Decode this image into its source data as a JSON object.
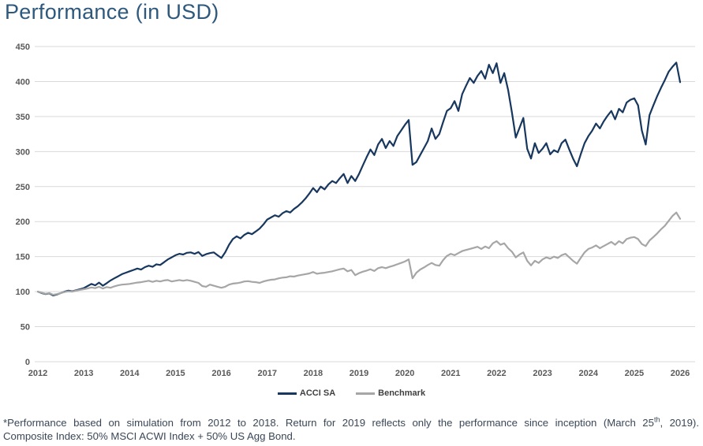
{
  "title": "Performance (in USD)",
  "footnote": {
    "part1": "*Performance based on simulation from 2012 to 2018. Return for 2019 reflects only the performance since inception (March 25",
    "sup": "th",
    "part2": ", 2019).",
    "line2": "Composite Index: 50% MSCI ACWI Index + 50% US Agg Bond."
  },
  "colors": {
    "title": "#2E587C",
    "grid": "#D9D9D9",
    "tick_label": "#595959",
    "footnote": "#3A4757",
    "acci_sa_line": "#17375E",
    "benchmark_line": "#A6A6A6"
  },
  "chart_data": {
    "type": "line",
    "title": "Performance (in USD)",
    "xlabel": "",
    "ylabel": "",
    "grid": true,
    "legend_position": "bottom",
    "ylim": [
      0,
      450
    ],
    "y_ticks": [
      0,
      50,
      100,
      150,
      200,
      250,
      300,
      350,
      400,
      450
    ],
    "x_ticks": [
      2012,
      2013,
      2014,
      2015,
      2016,
      2017,
      2018,
      2019,
      2020,
      2021,
      2022,
      2023,
      2024,
      2025,
      2026
    ],
    "x_start_year": 2012,
    "points_per_year": 12,
    "series": [
      {
        "name": "ACCI SA",
        "color": "#17375E",
        "values": [
          100,
          98,
          96.5,
          97.5,
          94.5,
          96,
          98,
          100,
          101.5,
          100.5,
          102,
          103.5,
          105,
          108,
          111,
          109,
          113,
          108.5,
          112,
          116,
          119,
          122,
          125,
          127,
          129,
          131,
          133,
          131.5,
          135,
          137,
          135.5,
          139,
          138,
          142,
          146,
          149,
          152,
          154,
          153,
          155.5,
          156,
          154,
          156.5,
          151,
          153.5,
          155,
          156,
          152,
          148,
          156,
          167,
          175,
          179,
          176,
          181,
          184,
          182,
          186,
          190,
          196,
          203,
          206,
          209,
          207,
          212,
          215,
          213,
          218,
          222,
          227,
          233,
          240,
          248,
          242,
          250,
          246,
          253,
          258,
          255,
          262,
          268,
          255,
          265,
          258,
          268,
          280,
          292,
          303,
          295,
          310,
          318,
          305,
          315,
          308,
          322,
          330,
          338,
          345,
          281,
          285,
          295,
          305,
          315,
          333,
          318,
          325,
          342,
          358,
          362,
          372,
          358,
          382,
          394,
          405,
          398,
          408,
          415,
          404,
          424,
          412,
          426,
          398,
          412,
          388,
          356,
          320,
          334,
          348,
          304,
          290,
          312,
          298,
          304,
          312,
          296,
          302,
          299,
          312,
          317,
          303,
          290,
          279,
          296,
          312,
          322,
          330,
          340,
          333,
          343,
          351,
          358,
          346,
          361,
          356,
          370,
          374,
          376,
          366,
          330,
          310,
          352,
          366,
          379,
          391,
          402,
          414,
          421,
          427,
          399
        ]
      },
      {
        "name": "Benchmark",
        "color": "#A6A6A6",
        "values": [
          100,
          98.5,
          97,
          98,
          95.5,
          96.5,
          98,
          99.5,
          100.5,
          100,
          101.5,
          102.5,
          103.5,
          104.5,
          106,
          105,
          107,
          104.5,
          106.5,
          105.5,
          107.5,
          109,
          110,
          110.5,
          111,
          112,
          113,
          113.5,
          114.5,
          115.5,
          114,
          115.5,
          114.5,
          116,
          116.5,
          114.5,
          115.5,
          116.5,
          115.5,
          116.5,
          115.5,
          114,
          112.5,
          108,
          107,
          110,
          108.5,
          107,
          105.5,
          107,
          110,
          111.5,
          112,
          113,
          114.5,
          115,
          114,
          113.5,
          112.5,
          114.5,
          116,
          117,
          117.5,
          119,
          120,
          120.5,
          122,
          121.5,
          123,
          124,
          125,
          126,
          128,
          125.5,
          126.5,
          127,
          128,
          129,
          130.5,
          132,
          133,
          129,
          131,
          123.5,
          126.5,
          128.5,
          130,
          132,
          129.5,
          133.5,
          135,
          133.5,
          135.5,
          137,
          139,
          141,
          143,
          146,
          119,
          127,
          131.5,
          134.5,
          138,
          141,
          138,
          137,
          145,
          151,
          154,
          152,
          155,
          158,
          159.5,
          161,
          162.5,
          164,
          161,
          164.5,
          162,
          169,
          172,
          167,
          169,
          162,
          157,
          149,
          153,
          156,
          144,
          137.5,
          144,
          141,
          146,
          149,
          147,
          150,
          148,
          152,
          154,
          149,
          144,
          140,
          148,
          156,
          161,
          163,
          166,
          162,
          165,
          168,
          171,
          167,
          172,
          169,
          175,
          177,
          178,
          175,
          168,
          165,
          173,
          178,
          183,
          189,
          194,
          201,
          208,
          213,
          204
        ]
      }
    ]
  }
}
